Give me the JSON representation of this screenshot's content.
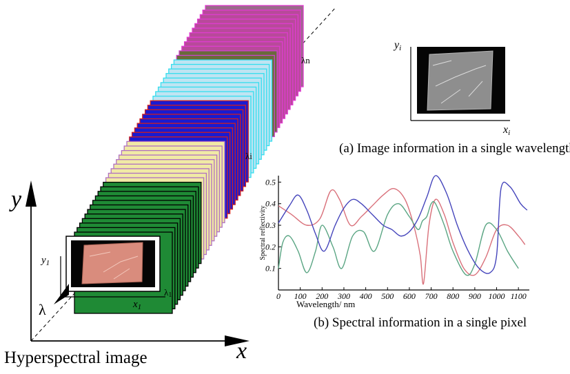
{
  "hyperspectral": {
    "title": "Hyperspectral image",
    "axis_x": "x",
    "axis_y": "y",
    "axis_lambda": "λ",
    "x1": "x",
    "x1_sub": "1",
    "y1": "y",
    "y1_sub": "1",
    "lambda_1": "λ",
    "lambda_1_sub": "1",
    "lambda_i": "λi",
    "lambda_n": "λn"
  },
  "single_band": {
    "caption": "(a) Image information in a single wavelength",
    "xi": "x",
    "xi_sub": "i",
    "yi": "y",
    "yi_sub": "i"
  },
  "spectral": {
    "caption": "(b) Spectral information in a single pixel",
    "colors": {
      "red": "#d9707a",
      "green": "#5aa583",
      "blue": "#4444bb"
    }
  },
  "chart_data": {
    "type": "line",
    "xlabel": "Wavelength/ nm",
    "ylabel": "Spectral reflectivity",
    "xlim": [
      0,
      1150
    ],
    "ylim": [
      0,
      0.53
    ],
    "xticks": [
      0,
      100,
      200,
      300,
      400,
      500,
      600,
      700,
      800,
      900,
      1000,
      1100
    ],
    "yticks": [
      0.1,
      0.2,
      0.3,
      0.4,
      0.5
    ],
    "series": [
      {
        "color": "#d9707a",
        "x": [
          0,
          60,
          130,
          190,
          240,
          280,
          330,
          380,
          430,
          480,
          530,
          580,
          620,
          650,
          665,
          690,
          720,
          760,
          800,
          850,
          900,
          950,
          1000,
          1050,
          1100,
          1130
        ],
        "y": [
          0.39,
          0.35,
          0.3,
          0.33,
          0.46,
          0.42,
          0.3,
          0.34,
          0.39,
          0.44,
          0.47,
          0.42,
          0.3,
          0.16,
          0.03,
          0.3,
          0.42,
          0.35,
          0.22,
          0.1,
          0.07,
          0.15,
          0.28,
          0.3,
          0.25,
          0.21
        ]
      },
      {
        "color": "#5aa583",
        "x": [
          0,
          20,
          50,
          90,
          130,
          170,
          200,
          250,
          290,
          340,
          390,
          440,
          500,
          550,
          600,
          640,
          660,
          680,
          700,
          720,
          760,
          800,
          860,
          900,
          950,
          1000,
          1050,
          1100
        ],
        "y": [
          0.1,
          0.22,
          0.25,
          0.18,
          0.08,
          0.18,
          0.3,
          0.2,
          0.1,
          0.25,
          0.27,
          0.18,
          0.35,
          0.4,
          0.34,
          0.28,
          0.32,
          0.34,
          0.4,
          0.4,
          0.3,
          0.18,
          0.07,
          0.12,
          0.3,
          0.28,
          0.18,
          0.1
        ]
      },
      {
        "color": "#4444bb",
        "x": [
          0,
          50,
          90,
          130,
          170,
          210,
          260,
          300,
          340,
          380,
          430,
          480,
          520,
          560,
          600,
          640,
          680,
          720,
          770,
          820,
          870,
          920,
          970,
          1000,
          1020,
          1060,
          1110,
          1140
        ],
        "y": [
          0.31,
          0.39,
          0.44,
          0.37,
          0.26,
          0.18,
          0.3,
          0.38,
          0.42,
          0.4,
          0.35,
          0.3,
          0.28,
          0.25,
          0.27,
          0.33,
          0.43,
          0.53,
          0.45,
          0.3,
          0.18,
          0.1,
          0.08,
          0.16,
          0.47,
          0.48,
          0.4,
          0.37
        ]
      }
    ]
  }
}
